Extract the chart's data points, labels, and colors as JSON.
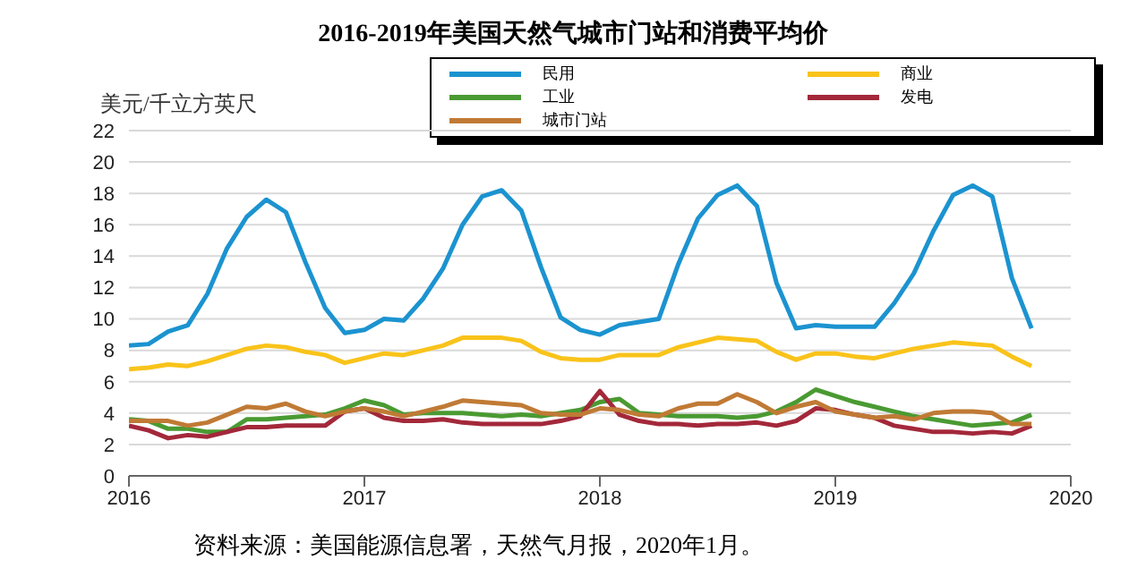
{
  "chart_data": {
    "type": "line",
    "title": "2016-2019年美国天然气城市门站和消费平均价",
    "ylabel": "美元/千立方英尺",
    "annotations": [
      "资料来源：美国能源信息署，天然气月报，2020年1月。"
    ],
    "x": [
      "2016-01",
      "2016-02",
      "2016-03",
      "2016-04",
      "2016-05",
      "2016-06",
      "2016-07",
      "2016-08",
      "2016-09",
      "2016-10",
      "2016-11",
      "2016-12",
      "2017-01",
      "2017-02",
      "2017-03",
      "2017-04",
      "2017-05",
      "2017-06",
      "2017-07",
      "2017-08",
      "2017-09",
      "2017-10",
      "2017-11",
      "2017-12",
      "2018-01",
      "2018-02",
      "2018-03",
      "2018-04",
      "2018-05",
      "2018-06",
      "2018-07",
      "2018-08",
      "2018-09",
      "2018-10",
      "2018-11",
      "2018-12",
      "2019-01",
      "2019-02",
      "2019-03",
      "2019-04",
      "2019-05",
      "2019-06",
      "2019-07",
      "2019-08",
      "2019-09",
      "2019-10",
      "2019-11"
    ],
    "series": [
      {
        "name": "民用",
        "color": "#1b93d0",
        "values": [
          8.3,
          8.4,
          9.2,
          9.6,
          11.6,
          14.5,
          16.5,
          17.6,
          16.8,
          13.6,
          10.7,
          9.1,
          9.3,
          10.0,
          9.9,
          11.3,
          13.2,
          16.0,
          17.8,
          18.2,
          16.9,
          13.3,
          10.1,
          9.3,
          9.0,
          9.6,
          9.8,
          10.0,
          13.5,
          16.4,
          17.9,
          18.5,
          17.2,
          12.3,
          9.4,
          9.6,
          9.5,
          9.5,
          9.5,
          11.0,
          12.9,
          15.6,
          17.9,
          18.5,
          17.8,
          12.6,
          9.4
        ]
      },
      {
        "name": "商业",
        "color": "#f9c31a",
        "values": [
          6.8,
          6.9,
          7.1,
          7.0,
          7.3,
          7.7,
          8.1,
          8.3,
          8.2,
          7.9,
          7.7,
          7.2,
          7.5,
          7.8,
          7.7,
          8.0,
          8.3,
          8.8,
          8.8,
          8.8,
          8.6,
          7.9,
          7.5,
          7.4,
          7.4,
          7.7,
          7.7,
          7.7,
          8.2,
          8.5,
          8.8,
          8.7,
          8.6,
          7.9,
          7.4,
          7.8,
          7.8,
          7.6,
          7.5,
          7.8,
          8.1,
          8.3,
          8.5,
          8.4,
          8.3,
          7.6,
          7.0
        ]
      },
      {
        "name": "工业",
        "color": "#4a9a32",
        "values": [
          3.6,
          3.5,
          3.0,
          3.0,
          2.8,
          2.8,
          3.6,
          3.6,
          3.7,
          3.8,
          3.9,
          4.3,
          4.8,
          4.5,
          3.9,
          4.0,
          4.0,
          4.0,
          3.9,
          3.8,
          3.9,
          3.8,
          4.0,
          4.2,
          4.7,
          4.9,
          4.0,
          3.9,
          3.8,
          3.8,
          3.8,
          3.7,
          3.8,
          4.1,
          4.7,
          5.5,
          5.1,
          4.7,
          4.4,
          4.1,
          3.8,
          3.6,
          3.4,
          3.2,
          3.3,
          3.4,
          3.9
        ]
      },
      {
        "name": "发电",
        "color": "#a3283a",
        "values": [
          3.2,
          2.9,
          2.4,
          2.6,
          2.5,
          2.8,
          3.1,
          3.1,
          3.2,
          3.2,
          3.2,
          4.1,
          4.3,
          3.7,
          3.5,
          3.5,
          3.6,
          3.4,
          3.3,
          3.3,
          3.3,
          3.3,
          3.5,
          3.8,
          5.4,
          3.9,
          3.5,
          3.3,
          3.3,
          3.2,
          3.3,
          3.3,
          3.4,
          3.2,
          3.5,
          4.3,
          4.2,
          3.9,
          3.7,
          3.2,
          3.0,
          2.8,
          2.8,
          2.7,
          2.8,
          2.7,
          3.2
        ]
      },
      {
        "name": "城市门站",
        "color": "#c07a35",
        "values": [
          3.5,
          3.5,
          3.5,
          3.2,
          3.4,
          3.9,
          4.4,
          4.3,
          4.6,
          4.1,
          3.8,
          4.1,
          4.3,
          4.1,
          3.8,
          4.1,
          4.4,
          4.8,
          4.7,
          4.6,
          4.5,
          4.0,
          3.9,
          3.9,
          4.3,
          4.2,
          3.9,
          3.8,
          4.3,
          4.6,
          4.6,
          5.2,
          4.7,
          4.0,
          4.4,
          4.7,
          4.1,
          3.9,
          3.7,
          3.8,
          3.6,
          4.0,
          4.1,
          4.1,
          4.0,
          3.3,
          3.3
        ]
      }
    ],
    "xlim": [
      "2016-01",
      "2020-01"
    ],
    "xticks": [
      {
        "value": "2016-01",
        "label": "2016"
      },
      {
        "value": "2017-01",
        "label": "2017"
      },
      {
        "value": "2018-01",
        "label": "2018"
      },
      {
        "value": "2019-01",
        "label": "2019"
      },
      {
        "value": "2020-01",
        "label": "2020"
      }
    ],
    "ylim": [
      0,
      22
    ],
    "yticks": [
      0,
      2,
      4,
      6,
      8,
      10,
      12,
      14,
      16,
      18,
      20,
      22
    ],
    "grid": "y",
    "legend": "top right",
    "marker": "none",
    "line_style": "solid"
  }
}
